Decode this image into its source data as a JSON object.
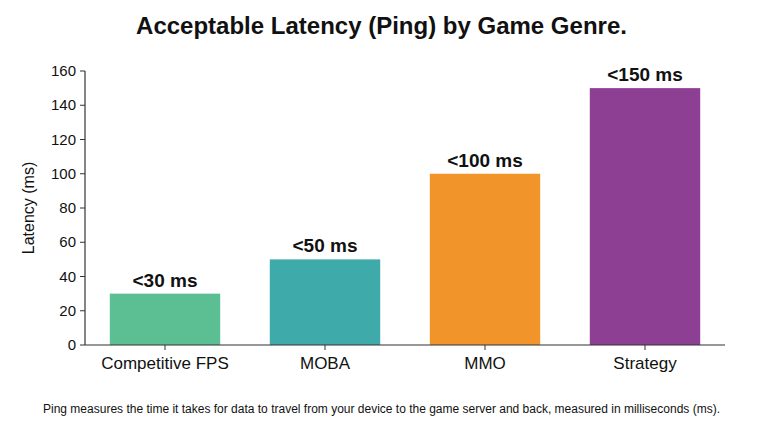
{
  "chart_data": {
    "type": "bar",
    "title": "Acceptable Latency (Ping) by Game Genre.",
    "ylabel": "Latency (ms)",
    "categories": [
      "Competitive FPS",
      "MOBA",
      "MMO",
      "Strategy"
    ],
    "values": [
      30,
      50,
      100,
      150
    ],
    "value_labels": [
      "<30 ms",
      "<50 ms",
      "<100 ms",
      "<150 ms"
    ],
    "colors": [
      "#5bbf93",
      "#3eaaa9",
      "#f1952b",
      "#8c3f93"
    ],
    "ylim": [
      0,
      160
    ],
    "yticks": [
      0,
      20,
      40,
      60,
      80,
      100,
      120,
      140,
      160
    ],
    "grid": false,
    "data_labels": true,
    "footnote": "Ping measures the time it takes for data to travel from your device to the game server and back, measured in milliseconds (ms)."
  }
}
